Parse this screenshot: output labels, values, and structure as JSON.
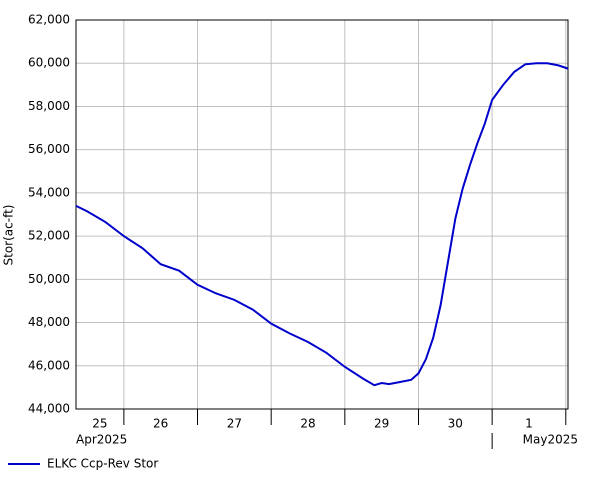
{
  "chart_data": {
    "type": "line",
    "y_label": "Stor(ac-ft)",
    "x": [
      0.35,
      0.5,
      0.75,
      1.0,
      1.25,
      1.5,
      1.75,
      2.0,
      2.25,
      2.5,
      2.75,
      3.0,
      3.25,
      3.5,
      3.75,
      4.0,
      4.25,
      4.4,
      4.5,
      4.6,
      4.75,
      4.9,
      5.0,
      5.1,
      5.2,
      5.3,
      5.4,
      5.5,
      5.6,
      5.7,
      5.8,
      5.9,
      6.0,
      6.15,
      6.3,
      6.45,
      6.6,
      6.75,
      6.9,
      7.03
    ],
    "series": [
      {
        "name": "ELKC Ccp-Rev Stor",
        "color": "#0000cc",
        "values": [
          53400,
          53150,
          52650,
          52000,
          51450,
          50700,
          50400,
          49750,
          49350,
          49050,
          48600,
          47950,
          47500,
          47100,
          46600,
          45950,
          45400,
          45100,
          45200,
          45150,
          45250,
          45350,
          45650,
          46300,
          47300,
          48800,
          50800,
          52800,
          54200,
          55300,
          56300,
          57200,
          58300,
          59000,
          59600,
          59950,
          60000,
          60000,
          59900,
          59750
        ]
      }
    ],
    "xlim": [
      0.35,
      7.03
    ],
    "xticks": [
      1,
      2,
      3,
      4,
      5,
      6,
      7
    ],
    "x_bands": [
      "25",
      "26",
      "27",
      "28",
      "29",
      "30",
      "1"
    ],
    "x_month_labels": [
      {
        "value": 0.35,
        "label": "Apr2025"
      },
      {
        "value": 6,
        "label": "May2025"
      }
    ],
    "ylim": [
      44000,
      62000
    ],
    "yticks": [
      {
        "value": 44000,
        "label": "44,000"
      },
      {
        "value": 46000,
        "label": "46,000"
      },
      {
        "value": 48000,
        "label": "48,000"
      },
      {
        "value": 50000,
        "label": "50,000"
      },
      {
        "value": 52000,
        "label": "52,000"
      },
      {
        "value": 54000,
        "label": "54,000"
      },
      {
        "value": 56000,
        "label": "56,000"
      },
      {
        "value": 58000,
        "label": "58,000"
      },
      {
        "value": 60000,
        "label": "60,000"
      },
      {
        "value": 62000,
        "label": "62,000"
      }
    ],
    "grid": true
  }
}
